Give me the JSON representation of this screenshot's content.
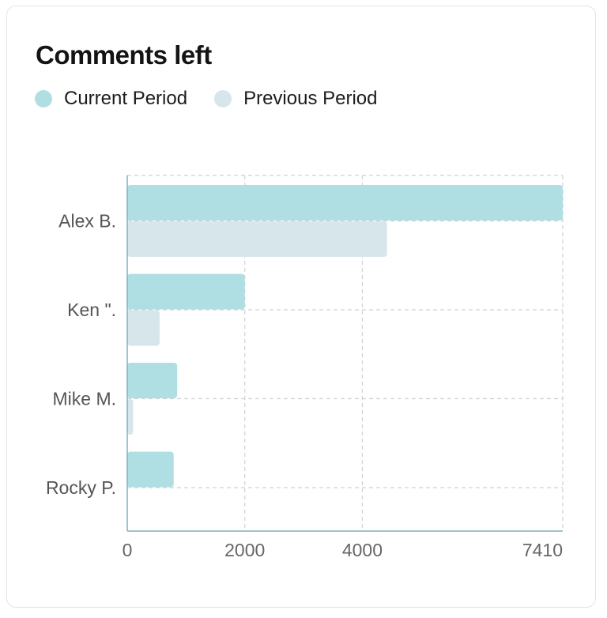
{
  "card": {
    "title": "Comments left"
  },
  "colors": {
    "current": "#b0dfe3",
    "previous": "#d6e6ea",
    "axis": "#7fb2b8",
    "grid": "#d0d0d0"
  },
  "chart_data": {
    "type": "bar",
    "orientation": "horizontal",
    "title": "Comments left",
    "categories": [
      "Alex B.",
      "Ken \".",
      "Mike M.",
      "Rocky P."
    ],
    "series": [
      {
        "name": "Current Period",
        "values": [
          7410,
          2000,
          850,
          790
        ]
      },
      {
        "name": "Previous Period",
        "values": [
          4420,
          550,
          100,
          0
        ]
      }
    ],
    "xlim": [
      0,
      7410
    ],
    "xticks": [
      0,
      2000,
      4000,
      7410
    ],
    "grid": true,
    "legend_position": "top-left"
  }
}
